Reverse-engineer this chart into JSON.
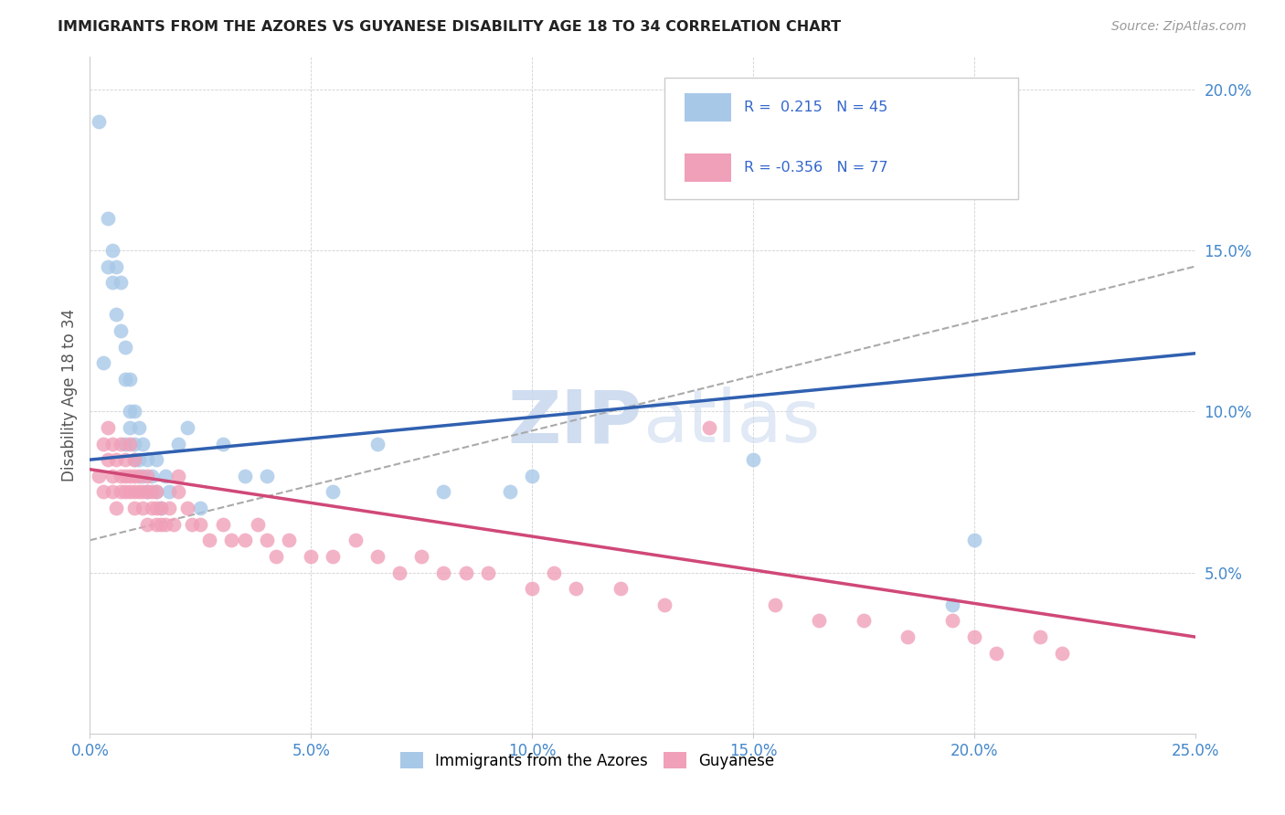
{
  "title": "IMMIGRANTS FROM THE AZORES VS GUYANESE DISABILITY AGE 18 TO 34 CORRELATION CHART",
  "source": "Source: ZipAtlas.com",
  "ylabel": "Disability Age 18 to 34",
  "xlim": [
    0.0,
    0.25
  ],
  "ylim": [
    0.0,
    0.21
  ],
  "xticks": [
    0.0,
    0.05,
    0.1,
    0.15,
    0.2,
    0.25
  ],
  "yticks": [
    0.0,
    0.05,
    0.1,
    0.15,
    0.2
  ],
  "legend1_label": "Immigrants from the Azores",
  "legend2_label": "Guyanese",
  "R1": 0.215,
  "N1": 45,
  "R2": -0.356,
  "N2": 77,
  "blue_color": "#a8c8e8",
  "pink_color": "#f0a0b8",
  "blue_line_color": "#3060b0",
  "pink_line_color": "#d04878",
  "gray_dashed_color": "#aaaaaa",
  "watermark_color": "#c8d8ee",
  "background_color": "#ffffff",
  "blue_scatter_x": [
    0.002,
    0.003,
    0.004,
    0.004,
    0.005,
    0.005,
    0.006,
    0.006,
    0.007,
    0.007,
    0.008,
    0.008,
    0.008,
    0.009,
    0.009,
    0.009,
    0.01,
    0.01,
    0.01,
    0.011,
    0.011,
    0.012,
    0.012,
    0.013,
    0.013,
    0.014,
    0.015,
    0.015,
    0.016,
    0.017,
    0.018,
    0.02,
    0.022,
    0.025,
    0.03,
    0.035,
    0.04,
    0.055,
    0.065,
    0.08,
    0.095,
    0.1,
    0.15,
    0.195,
    0.2
  ],
  "blue_scatter_y": [
    0.19,
    0.115,
    0.145,
    0.16,
    0.14,
    0.15,
    0.13,
    0.145,
    0.125,
    0.14,
    0.11,
    0.12,
    0.09,
    0.095,
    0.1,
    0.11,
    0.085,
    0.09,
    0.1,
    0.085,
    0.095,
    0.08,
    0.09,
    0.075,
    0.085,
    0.08,
    0.075,
    0.085,
    0.07,
    0.08,
    0.075,
    0.09,
    0.095,
    0.07,
    0.09,
    0.08,
    0.08,
    0.075,
    0.09,
    0.075,
    0.075,
    0.08,
    0.085,
    0.04,
    0.06
  ],
  "pink_scatter_x": [
    0.002,
    0.003,
    0.003,
    0.004,
    0.004,
    0.005,
    0.005,
    0.005,
    0.006,
    0.006,
    0.007,
    0.007,
    0.007,
    0.008,
    0.008,
    0.008,
    0.009,
    0.009,
    0.009,
    0.01,
    0.01,
    0.01,
    0.01,
    0.011,
    0.011,
    0.012,
    0.012,
    0.013,
    0.013,
    0.013,
    0.014,
    0.014,
    0.015,
    0.015,
    0.015,
    0.016,
    0.016,
    0.017,
    0.018,
    0.019,
    0.02,
    0.02,
    0.022,
    0.023,
    0.025,
    0.027,
    0.03,
    0.032,
    0.035,
    0.038,
    0.04,
    0.042,
    0.045,
    0.05,
    0.055,
    0.06,
    0.065,
    0.07,
    0.075,
    0.08,
    0.085,
    0.09,
    0.1,
    0.105,
    0.11,
    0.12,
    0.13,
    0.14,
    0.155,
    0.165,
    0.175,
    0.185,
    0.195,
    0.2,
    0.205,
    0.215,
    0.22
  ],
  "pink_scatter_y": [
    0.08,
    0.09,
    0.075,
    0.085,
    0.095,
    0.075,
    0.08,
    0.09,
    0.085,
    0.07,
    0.075,
    0.08,
    0.09,
    0.075,
    0.08,
    0.085,
    0.075,
    0.08,
    0.09,
    0.07,
    0.075,
    0.08,
    0.085,
    0.075,
    0.08,
    0.07,
    0.075,
    0.065,
    0.075,
    0.08,
    0.07,
    0.075,
    0.065,
    0.07,
    0.075,
    0.065,
    0.07,
    0.065,
    0.07,
    0.065,
    0.075,
    0.08,
    0.07,
    0.065,
    0.065,
    0.06,
    0.065,
    0.06,
    0.06,
    0.065,
    0.06,
    0.055,
    0.06,
    0.055,
    0.055,
    0.06,
    0.055,
    0.05,
    0.055,
    0.05,
    0.05,
    0.05,
    0.045,
    0.05,
    0.045,
    0.045,
    0.04,
    0.095,
    0.04,
    0.035,
    0.035,
    0.03,
    0.035,
    0.03,
    0.025,
    0.03,
    0.025
  ],
  "blue_line_x0": 0.0,
  "blue_line_y0": 0.085,
  "blue_line_x1": 0.25,
  "blue_line_y1": 0.118,
  "pink_line_x0": 0.0,
  "pink_line_y0": 0.082,
  "pink_line_x1": 0.25,
  "pink_line_y1": 0.03,
  "gray_line_x0": 0.0,
  "gray_line_y0": 0.06,
  "gray_line_x1": 0.25,
  "gray_line_y1": 0.145
}
